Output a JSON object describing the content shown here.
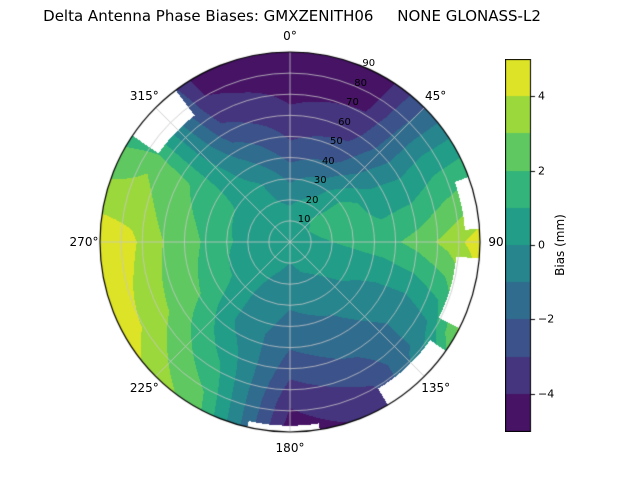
{
  "title": "Delta Antenna Phase Biases: GMXZENITH06     NONE GLONASS-L2",
  "chart_data": {
    "type": "polar_contour",
    "title": "Delta Antenna Phase Biases: GMXZENITH06     NONE GLONASS-L2",
    "orientation": "azimuth clockwise from top (north), zenith angle 0 at center to 90 at edge",
    "azimuth_ticks": [
      {
        "angle": 0,
        "label": "0°"
      },
      {
        "angle": 45,
        "label": "45°"
      },
      {
        "angle": 90,
        "label": "90"
      },
      {
        "angle": 135,
        "label": "135°"
      },
      {
        "angle": 180,
        "label": "180°"
      },
      {
        "angle": 225,
        "label": "225°"
      },
      {
        "angle": 270,
        "label": "270°"
      },
      {
        "angle": 315,
        "label": "315°"
      }
    ],
    "radial_ticks": [
      {
        "r": 10,
        "label": "10"
      },
      {
        "r": 20,
        "label": "20"
      },
      {
        "r": 30,
        "label": "30"
      },
      {
        "r": 40,
        "label": "40"
      },
      {
        "r": 50,
        "label": "50"
      },
      {
        "r": 60,
        "label": "60"
      },
      {
        "r": 70,
        "label": "70"
      },
      {
        "r": 80,
        "label": "80"
      },
      {
        "r": 90,
        "label": "90"
      }
    ],
    "radial_label_azimuth_deg": 22.5,
    "levels": {
      "min": -5,
      "max": 5,
      "step": 1
    },
    "grid": {
      "azimuth_deg": [
        0,
        30,
        60,
        90,
        120,
        150,
        180,
        210,
        240,
        270,
        300,
        330
      ],
      "zenith_deg": [
        0,
        15,
        30,
        45,
        60,
        75,
        90
      ],
      "bias_mm": [
        [
          0.4,
          0.4,
          0.4,
          0.4,
          0.4,
          0.4,
          0.4,
          0.4,
          0.4,
          0.4,
          0.4,
          0.4
        ],
        [
          0.2,
          0.8,
          1.3,
          0.9,
          0.4,
          0.1,
          -0.2,
          0.1,
          0.4,
          0.6,
          0.6,
          0.3
        ],
        [
          -1.2,
          -0.4,
          1.6,
          1.2,
          0.2,
          -0.6,
          -0.9,
          -0.2,
          0.9,
          1.1,
          1.0,
          0.2
        ],
        [
          -2.8,
          -2.2,
          0.3,
          1.6,
          -0.3,
          -1.2,
          -1.6,
          -0.4,
          1.8,
          2.2,
          1.6,
          -1.0
        ],
        [
          -3.8,
          -3.4,
          0.0,
          2.4,
          -0.6,
          -1.8,
          -2.6,
          0.6,
          2.6,
          3.0,
          2.2,
          -2.6
        ],
        [
          -4.4,
          -4.2,
          0.5,
          3.4,
          0.0,
          -2.8,
          -3.8,
          1.6,
          3.6,
          4.2,
          2.8,
          -3.8
        ],
        [
          -4.8,
          -4.6,
          0.5,
          4.6,
          3.0,
          -3.6,
          -4.6,
          2.5,
          4.6,
          4.8,
          2.0,
          -4.4
        ]
      ]
    },
    "nodata_regions": [
      {
        "az": [
          304,
          323
        ],
        "r": [
          75,
          90
        ]
      },
      {
        "az": [
          70,
          86
        ],
        "r": [
          83,
          90
        ]
      },
      {
        "az": [
          95,
          117
        ],
        "r": [
          79,
          90
        ]
      },
      {
        "az": [
          125,
          149
        ],
        "r": [
          81,
          90
        ]
      },
      {
        "az": [
          171,
          193
        ],
        "r": [
          87,
          90
        ]
      }
    ],
    "colorbar": {
      "label": "Bias (mm)",
      "vmin": -5,
      "vmax": 5,
      "ticks": [
        {
          "v": -4,
          "label": "−4"
        },
        {
          "v": -2,
          "label": "−2"
        },
        {
          "v": 0,
          "label": "0"
        },
        {
          "v": 2,
          "label": "2"
        },
        {
          "v": 4,
          "label": "4"
        }
      ]
    },
    "colormap": {
      "name": "viridis",
      "stops": [
        [
          0.0,
          "#440154"
        ],
        [
          0.1,
          "#482475"
        ],
        [
          0.2,
          "#414487"
        ],
        [
          0.3,
          "#355f8d"
        ],
        [
          0.4,
          "#2a788e"
        ],
        [
          0.5,
          "#21918c"
        ],
        [
          0.6,
          "#22a884"
        ],
        [
          0.7,
          "#44bf70"
        ],
        [
          0.8,
          "#7ad151"
        ],
        [
          0.9,
          "#bddf26"
        ],
        [
          1.0,
          "#fde725"
        ]
      ]
    },
    "grid_line_color": "#c8c8c8",
    "outline_color": "#000000"
  }
}
